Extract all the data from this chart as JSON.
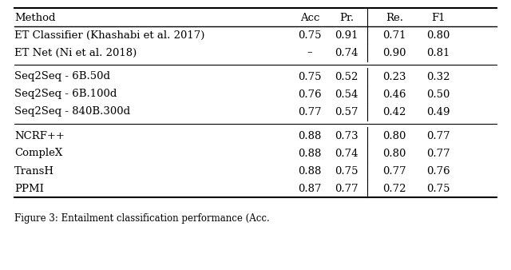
{
  "title": "Figure 3: Entailment classification performance (Acc.",
  "columns": [
    "Method",
    "Acc",
    "Pr.",
    "Re.",
    "F1"
  ],
  "rows": [
    [
      "ET Classifier (Khashabi et al. 2017)",
      "0.75",
      "0.91",
      "0.71",
      "0.80"
    ],
    [
      "ET Net (Ni et al. 2018)",
      "–",
      "0.74",
      "0.90",
      "0.81"
    ],
    [
      "Seq2Seq - 6B.50d",
      "0.75",
      "0.52",
      "0.23",
      "0.32"
    ],
    [
      "Seq2Seq - 6B.100d",
      "0.76",
      "0.54",
      "0.46",
      "0.50"
    ],
    [
      "Seq2Seq - 840B.300d",
      "0.77",
      "0.57",
      "0.42",
      "0.49"
    ],
    [
      "NCRF++",
      "0.88",
      "0.73",
      "0.80",
      "0.77"
    ],
    [
      "CompleX",
      "0.88",
      "0.74",
      "0.80",
      "0.77"
    ],
    [
      "TransH",
      "0.88",
      "0.75",
      "0.77",
      "0.76"
    ],
    [
      "PPMI",
      "0.87",
      "0.77",
      "0.72",
      "0.75"
    ]
  ],
  "group_separators_after": [
    1,
    4
  ],
  "background_color": "#ffffff",
  "font_size": 9.5,
  "caption_font_size": 8.5
}
